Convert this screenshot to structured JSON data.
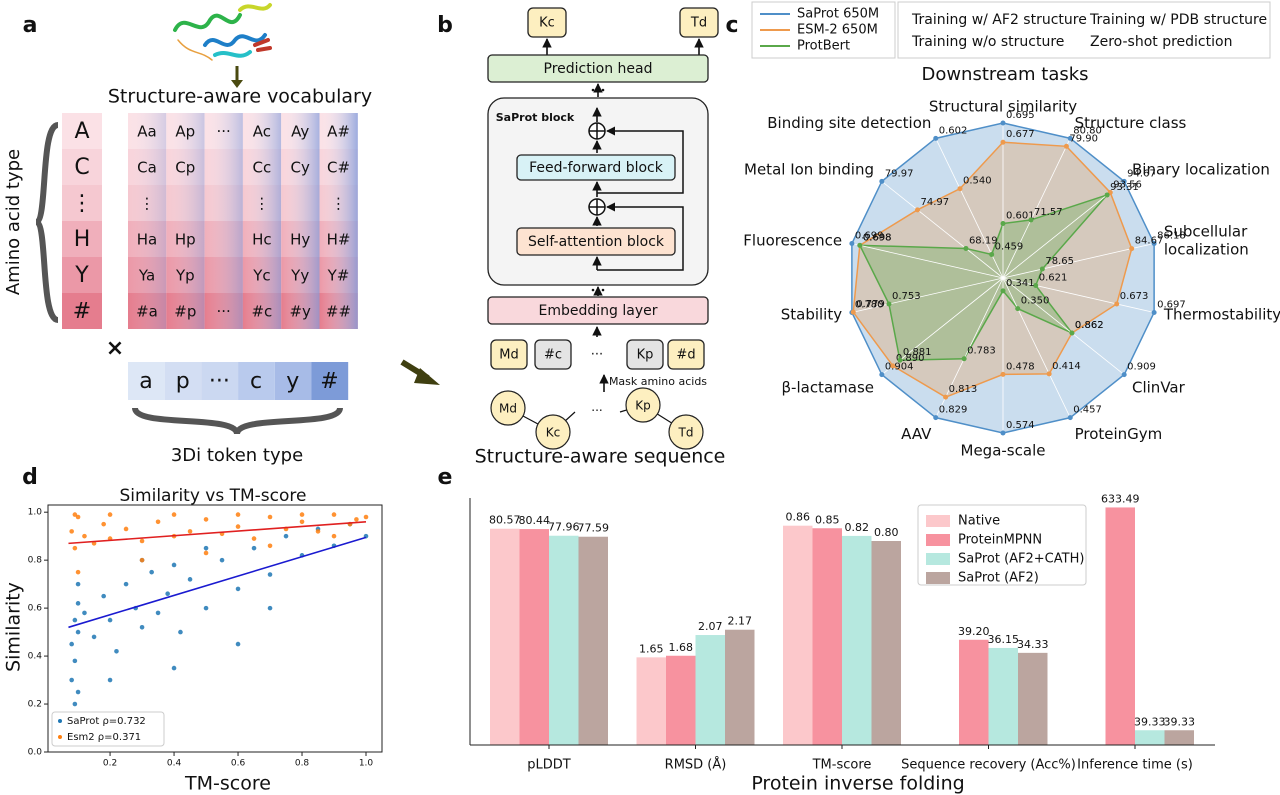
{
  "panel_labels": [
    "a",
    "b",
    "c",
    "d",
    "e"
  ],
  "panel_a": {
    "title": "Structure-aware vocabulary",
    "amino_acids": [
      "A",
      "C",
      "⋮",
      "H",
      "Y",
      "#"
    ],
    "grid": [
      [
        "Aa",
        "Ap",
        "···",
        "Ac",
        "Ay",
        "A#"
      ],
      [
        "Ca",
        "Cp",
        null,
        "Cc",
        "Cy",
        "C#"
      ],
      [
        "⋮",
        null,
        null,
        "⋮",
        null,
        "⋮"
      ],
      [
        "Ha",
        "Hp",
        null,
        "Hc",
        "Hy",
        "H#"
      ],
      [
        "Ya",
        "Yp",
        null,
        "Yc",
        "Yy",
        "Y#"
      ],
      [
        "#a",
        "#p",
        "···",
        "#c",
        "#y",
        "##"
      ]
    ],
    "times": "×",
    "tokens_3di": [
      "a",
      "p",
      "···",
      "c",
      "y",
      "#"
    ],
    "x_label": "3Di token type",
    "y_label": "Amino acid type"
  },
  "panel_b": {
    "outputs": [
      "Kc",
      "Td"
    ],
    "prediction_head": "Prediction head",
    "block_title": "SaProt block",
    "feed_forward": "Feed-forward block",
    "self_attention": "Self-attention block",
    "embedding": "Embedding layer",
    "input_tokens": [
      "Md",
      "#c",
      "···",
      "Kp",
      "#d"
    ],
    "mask_note": "Mask amino acids",
    "sequence_tokens": [
      "Md",
      "Kc",
      "···",
      "Kp",
      "Td"
    ],
    "caption": "Structure-aware sequence"
  },
  "chart_data": [
    {
      "type": "radar",
      "title": "Downstream tasks",
      "categories": [
        "Structural similarity",
        "Structure class",
        "Binary localization",
        [
          "Subcellular",
          "localization"
        ],
        "Thermostability",
        "ClinVar",
        "ProteinGym",
        "Mega-scale",
        "AAV",
        "β-lactamase",
        "Stability",
        "Fluorescence",
        "Metal Ion binding",
        "Binding site detection"
      ],
      "category_colors": [
        "#1f7fd0",
        "#1f7fd0",
        "#7b2fa8",
        "#7b2fa8",
        "#7b2fa8",
        "#d62728",
        "#d62728",
        "#d62728",
        "#4f9a2f",
        "#4f9a2f",
        "#4f9a2f",
        "#4f9a2f",
        "#1f7fd0",
        "#1f7fd0"
      ],
      "rlims": [
        [
          0.55,
          0.695
        ],
        [
          65,
          80.8
        ],
        [
          85,
          94.67
        ],
        [
          76,
          86.18
        ],
        [
          0.6,
          0.697
        ],
        [
          0.8,
          0.909
        ],
        [
          0.32,
          0.457
        ],
        [
          0.32,
          0.574
        ],
        [
          0.72,
          0.829
        ],
        [
          0.75,
          0.904
        ],
        [
          0.67,
          0.78
        ],
        [
          0.68,
          0.699
        ],
        [
          63,
          79.97
        ],
        [
          0.43,
          0.602
        ]
      ],
      "series": [
        {
          "name": "SaProt 650M",
          "color": "#4f8fc8",
          "values": [
            0.695,
            80.8,
            94.67,
            86.18,
            0.697,
            0.909,
            0.457,
            0.574,
            0.829,
            0.904,
            0.78,
            0.699,
            79.97,
            0.602
          ],
          "value_labels": [
            "0.695",
            "80.80",
            "94.67",
            "86.18",
            "0.697",
            "0.909",
            "0.457",
            "0.574",
            "0.829",
            "0.904",
            "0.780",
            "0.699",
            "79.97",
            "0.602"
          ]
        },
        {
          "name": "ESM-2 650M",
          "color": "#ee9a4d",
          "values": [
            0.677,
            79.9,
            93.56,
            84.67,
            0.673,
            0.862,
            0.414,
            0.478,
            0.813,
            0.89,
            0.779,
            0.698,
            74.97,
            0.54
          ],
          "value_labels": [
            "0.677",
            "79.90",
            "93.56",
            "84.67",
            "0.673",
            "0.862",
            "0.414",
            "0.478",
            "0.813",
            "0.890",
            "0.779",
            "0.698",
            "74.97",
            "0.540"
          ]
        },
        {
          "name": "ProtBert",
          "color": "#5aa84a",
          "values": [
            0.601,
            71.57,
            93.31,
            78.65,
            0.621,
            0.862,
            0.35,
            0.341,
            0.783,
            0.881,
            0.753,
            0.698,
            68.19,
            0.459
          ],
          "value_labels": [
            "0.601",
            "71.57",
            "93.31",
            "78.65",
            "0.621",
            "0.862",
            "0.350",
            "0.341",
            "0.783",
            "0.881",
            "0.753",
            "0.698",
            "68.19",
            "0.459"
          ]
        }
      ],
      "legend_groups": [
        {
          "label": "Training w/ AF2 structure",
          "color": "#7b2fa8"
        },
        {
          "label": "Training w/ PDB structure",
          "color": "#1f7fd0"
        },
        {
          "label": "Training w/o structure",
          "color": "#4f9a2f"
        },
        {
          "label": "Zero-shot prediction",
          "color": "#d62728"
        }
      ]
    },
    {
      "type": "scatter",
      "title": "Similarity vs TM-score",
      "x_label": "TM-score",
      "y_label": "Similarity",
      "xlim": [
        0.006,
        1.05
      ],
      "ylim": [
        0,
        1.03
      ],
      "xticks": [
        0.2,
        0.4,
        0.6,
        0.8,
        {
          "value": 1,
          "label": "1.0"
        }
      ],
      "yticks": [
        {
          "value": 0,
          "label": "0.0"
        },
        0.2,
        0.4,
        0.6,
        0.8,
        {
          "value": 1,
          "label": "1.0"
        }
      ],
      "legend": "lower left",
      "series": [
        {
          "name": "SaProt ρ=0.732",
          "color": "#1f77b4",
          "x": [
            0.08,
            0.08,
            0.09,
            0.09,
            0.1,
            0.1,
            0.1,
            0.12,
            0.15,
            0.18,
            0.2,
            0.22,
            0.25,
            0.28,
            0.3,
            0.33,
            0.35,
            0.38,
            0.4,
            0.42,
            0.45,
            0.5,
            0.55,
            0.6,
            0.65,
            0.7,
            0.75,
            0.8,
            0.85,
            0.9,
            0.95,
            1.0,
            0.4,
            0.6,
            0.3,
            0.5,
            0.7,
            0.2,
            0.09,
            0.1
          ],
          "values": [
            0.3,
            0.45,
            0.55,
            0.38,
            0.62,
            0.25,
            0.5,
            0.58,
            0.48,
            0.65,
            0.55,
            0.42,
            0.7,
            0.6,
            0.52,
            0.75,
            0.58,
            0.66,
            0.78,
            0.5,
            0.72,
            0.6,
            0.8,
            0.68,
            0.85,
            0.74,
            0.9,
            0.82,
            0.93,
            0.86,
            0.95,
            0.9,
            0.35,
            0.45,
            0.8,
            0.85,
            0.6,
            0.3,
            0.2,
            0.7
          ]
        },
        {
          "name": "Esm2 ρ=0.371",
          "color": "#ff7f0e",
          "x": [
            0.08,
            0.09,
            0.1,
            0.12,
            0.15,
            0.18,
            0.2,
            0.25,
            0.3,
            0.35,
            0.4,
            0.45,
            0.5,
            0.55,
            0.6,
            0.65,
            0.7,
            0.75,
            0.8,
            0.85,
            0.9,
            0.95,
            1.0,
            0.1,
            0.3,
            0.5,
            0.7,
            0.9,
            0.09,
            0.2,
            0.4,
            0.6,
            0.8,
            0.97
          ],
          "values": [
            0.92,
            0.85,
            0.98,
            0.9,
            0.87,
            0.95,
            0.89,
            0.93,
            0.88,
            0.96,
            0.9,
            0.92,
            0.97,
            0.91,
            0.94,
            0.89,
            0.98,
            0.93,
            0.96,
            0.92,
            0.99,
            0.95,
            0.98,
            0.75,
            0.8,
            0.83,
            0.86,
            0.9,
            0.99,
            0.99,
            0.99,
            0.99,
            0.99,
            0.97
          ]
        }
      ],
      "fit_lines": [
        {
          "color": "#e02020",
          "x": [
            0.07,
            1.0
          ],
          "values": [
            0.87,
            0.96
          ]
        },
        {
          "color": "#1a1ad0",
          "x": [
            0.07,
            1.0
          ],
          "values": [
            0.52,
            0.895
          ]
        }
      ]
    },
    {
      "type": "bar",
      "x_label": "Protein inverse folding",
      "categories": [
        "pLDDT",
        "RMSD (Å)",
        "TM-score",
        "Sequence recovery (Acc%)",
        "Inference time (s)"
      ],
      "ylims": [
        [
          0,
          95
        ],
        [
          0,
          4.8
        ],
        [
          0,
          1.0
        ],
        [
          0,
          95
        ],
        [
          0,
          680
        ]
      ],
      "legend": "upper right",
      "series": [
        {
          "name": "Native",
          "color": "#fcc8cb",
          "values": [
            80.57,
            1.65,
            0.86,
            null,
            null
          ],
          "value_labels": [
            "80.57",
            "1.65",
            "0.86",
            null,
            null
          ]
        },
        {
          "name": "ProteinMPNN",
          "color": "#f7929f",
          "values": [
            80.44,
            1.68,
            0.85,
            39.2,
            633.49
          ],
          "value_labels": [
            "80.44",
            "1.68",
            "0.85",
            "39.20",
            "633.49"
          ]
        },
        {
          "name": "SaProt (AF2+CATH)",
          "color": "#b6e8df",
          "values": [
            77.96,
            2.07,
            0.82,
            36.15,
            39.33
          ],
          "value_labels": [
            "77.96",
            "2.07",
            "0.82",
            "36.15",
            "39.33"
          ]
        },
        {
          "name": "SaProt (AF2)",
          "color": "#bba59f",
          "values": [
            77.59,
            2.17,
            0.8,
            34.33,
            39.33
          ],
          "value_labels": [
            "77.59",
            "2.17",
            "0.80",
            "34.33",
            "39.33"
          ]
        }
      ]
    }
  ]
}
